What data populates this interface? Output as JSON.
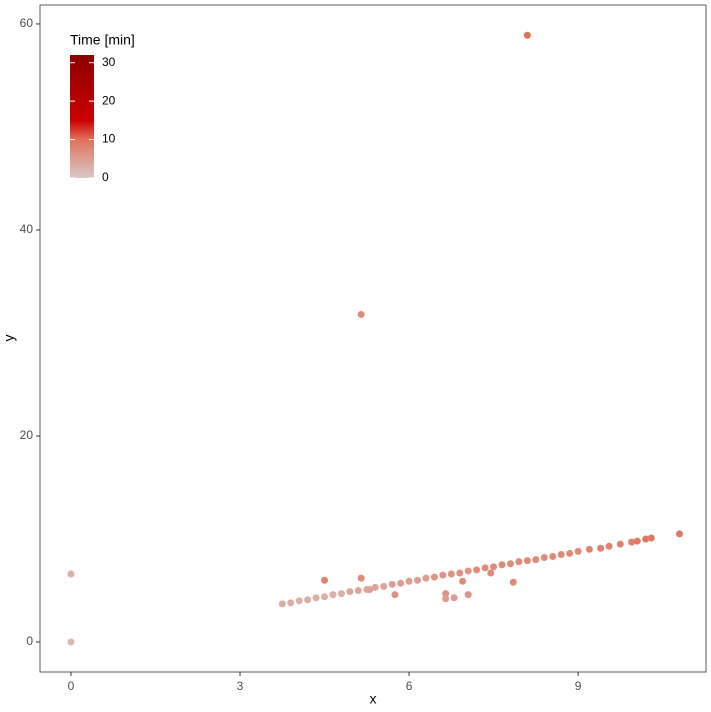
{
  "chart_data": {
    "type": "scatter",
    "x_label": "x",
    "y_label": "y",
    "xlim": [
      -0.55,
      11.27
    ],
    "ylim": [
      -2.91,
      61.84
    ],
    "xticks": [
      0,
      3,
      6,
      9
    ],
    "yticks": [
      0,
      20,
      40,
      60
    ],
    "x": [
      0,
      0,
      5.15,
      8.1,
      4.5,
      5.15,
      5.75,
      6.65,
      6.65,
      6.8,
      7.05,
      6.95,
      7.45,
      7.85,
      5.3,
      3.75,
      3.9,
      4.05,
      4.2,
      4.35,
      4.5,
      4.65,
      4.8,
      4.95,
      5.1,
      5.25,
      5.4,
      5.55,
      5.7,
      5.85,
      6.0,
      6.15,
      6.3,
      6.45,
      6.6,
      6.75,
      6.9,
      7.05,
      7.2,
      7.35,
      7.5,
      7.65,
      7.8,
      7.95,
      8.1,
      8.25,
      8.4,
      8.55,
      8.7,
      8.85,
      9.0,
      9.2,
      9.4,
      9.55,
      9.75,
      9.95,
      10.05,
      10.2,
      10.3,
      10.8
    ],
    "values": [
      0,
      6.6,
      31.8,
      58.9,
      6.0,
      6.2,
      4.6,
      4.7,
      4.2,
      4.3,
      4.6,
      5.9,
      6.7,
      5.8,
      5.1,
      3.7,
      3.8,
      4.0,
      4.1,
      4.3,
      4.4,
      4.6,
      4.7,
      4.9,
      5.0,
      5.1,
      5.3,
      5.4,
      5.6,
      5.7,
      5.9,
      6.0,
      6.2,
      6.3,
      6.5,
      6.6,
      6.7,
      6.9,
      7.0,
      7.2,
      7.3,
      7.5,
      7.6,
      7.8,
      7.9,
      8.0,
      8.2,
      8.3,
      8.5,
      8.6,
      8.8,
      9.0,
      9.1,
      9.3,
      9.5,
      9.7,
      9.8,
      10.0,
      10.1,
      10.5
    ],
    "time": [
      2,
      3,
      7,
      10,
      8,
      7,
      6,
      6,
      5,
      5,
      6,
      7,
      7,
      7,
      5,
      3,
      3,
      3,
      3,
      3,
      3,
      3,
      3,
      4,
      4,
      4,
      4,
      4,
      5,
      5,
      5,
      5,
      5,
      6,
      6,
      6,
      6,
      6,
      7,
      7,
      7,
      7,
      7,
      7,
      7,
      7,
      7,
      7,
      7,
      7,
      7,
      8,
      8,
      8,
      8,
      8,
      9,
      9,
      9,
      9
    ],
    "colorbar": {
      "title": "Time [min]",
      "range": [
        0,
        32
      ],
      "ticks": [
        0,
        10,
        20,
        30
      ],
      "stops": [
        {
          "value": 0,
          "color": "#d9c9c6"
        },
        {
          "value": 10,
          "color": "#e0705a"
        },
        {
          "value": 15,
          "color": "#cc0000"
        },
        {
          "value": 32,
          "color": "#8b0000"
        }
      ]
    }
  }
}
